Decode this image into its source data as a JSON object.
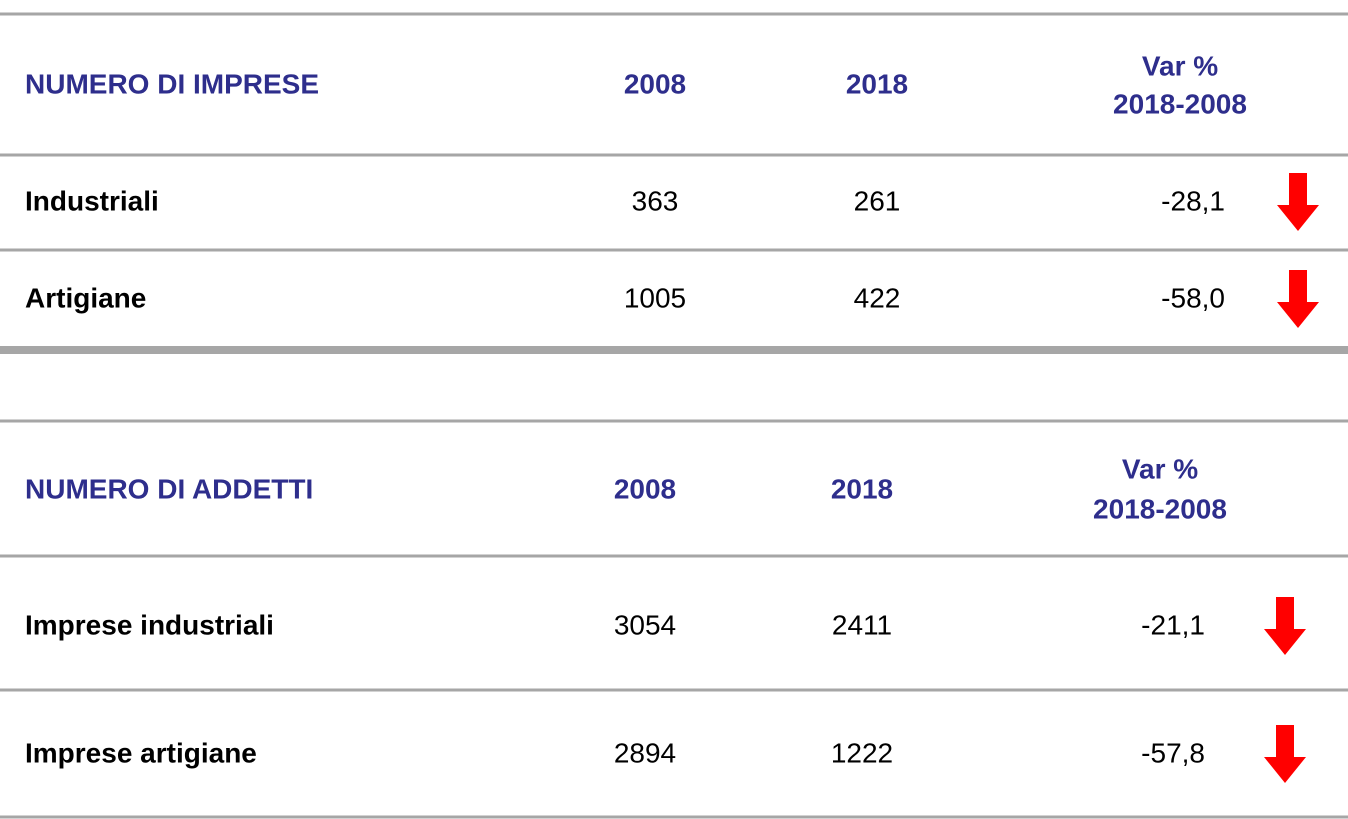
{
  "tables": [
    {
      "header": {
        "label": "NUMERO DI IMPRESE",
        "cols": [
          "2008",
          "2018"
        ],
        "var": [
          "Var %",
          "2018-2008"
        ]
      },
      "rows": [
        [
          "Industriali",
          "363",
          "261",
          "-28,1"
        ],
        [
          "Artigiane",
          "1005",
          "422",
          "-58,0"
        ]
      ]
    },
    {
      "header": {
        "label": "NUMERO DI ADDETTI",
        "cols": [
          "2008",
          "2018"
        ],
        "var": [
          "Var %",
          "2018-2008"
        ]
      },
      "rows": [
        [
          "Imprese industriali",
          "3054",
          "2411",
          "-21,1"
        ],
        [
          "Imprese artigiane",
          "2894",
          "1222",
          "-57,8"
        ]
      ]
    }
  ]
}
